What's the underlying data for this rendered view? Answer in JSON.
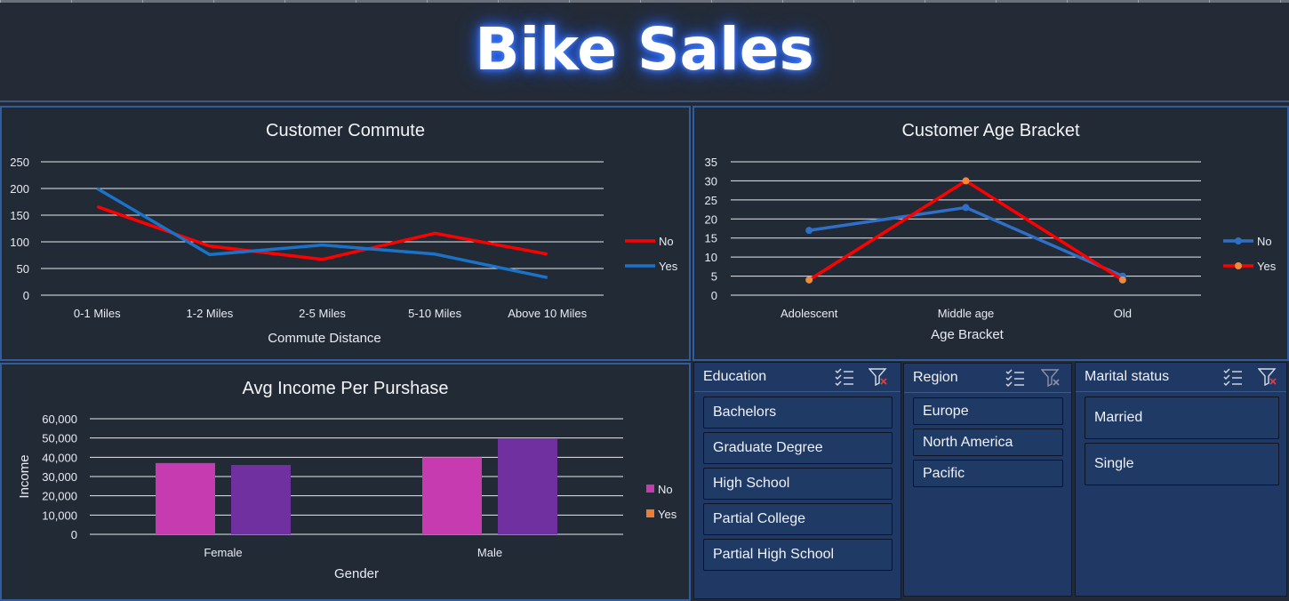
{
  "dashboard": {
    "title": "Bike Sales"
  },
  "colors": {
    "background": "#232a36",
    "panel_border": "#2f5d9d",
    "slicer_bg": "#1f3864",
    "commute_no": "#ff0000",
    "commute_yes": "#1a73c8",
    "age_no": "#2f6fc6",
    "age_yes": "#ff0000",
    "income_no": "#c63cb0",
    "income_yes": "#7030a0"
  },
  "commute_chart": {
    "title": "Customer Commute",
    "chart_data": {
      "type": "line",
      "title": "Customer Commute",
      "xlabel": "Commute Distance",
      "ylabel": "",
      "categories": [
        "0-1 Miles",
        "1-2 Miles",
        "2-5 Miles",
        "5-10 Miles",
        "Above 10 Miles"
      ],
      "ylim": [
        0,
        250
      ],
      "yticks": [
        "0",
        "50",
        "100",
        "150",
        "200",
        "250"
      ],
      "grid": true,
      "legend": "right",
      "series": [
        {
          "name": "No",
          "color": "#ff0000",
          "values": [
            166,
            92,
            67,
            116,
            77
          ]
        },
        {
          "name": "Yes",
          "color": "#1a73c8",
          "values": [
            200,
            76,
            94,
            77,
            33
          ]
        }
      ]
    }
  },
  "age_chart": {
    "title": "Customer Age Bracket",
    "chart_data": {
      "type": "line",
      "title": "Customer Age Bracket",
      "xlabel": "Age Bracket",
      "ylabel": "",
      "categories": [
        "Adolescent",
        "Middle age",
        "Old"
      ],
      "ylim": [
        0,
        35
      ],
      "yticks": [
        "0",
        "5",
        "10",
        "15",
        "20",
        "25",
        "30",
        "35"
      ],
      "grid": true,
      "legend": "right",
      "markers": true,
      "series": [
        {
          "name": "No",
          "color": "#2f6fc6",
          "values": [
            17,
            23,
            5
          ]
        },
        {
          "name": "Yes",
          "color": "#ff0000",
          "marker_color": "#f08a3c",
          "values": [
            4,
            30,
            4
          ]
        }
      ]
    }
  },
  "income_chart": {
    "title": "Avg Income Per Purshase",
    "chart_data": {
      "type": "bar",
      "title": "Avg Income Per Purshase",
      "xlabel": "Gender",
      "ylabel": "Income",
      "categories": [
        "Female",
        "Male"
      ],
      "ylim": [
        0,
        60000
      ],
      "yticks": [
        "0",
        "10,000",
        "20,000",
        "30,000",
        "40,000",
        "50,000",
        "60,000"
      ],
      "grid": true,
      "legend": "right",
      "series": [
        {
          "name": "No",
          "color": "#c63cb0",
          "legend_color": "#c63cb0",
          "values": [
            37000,
            40000
          ]
        },
        {
          "name": "Yes",
          "color": "#7030a0",
          "legend_color": "#ed7d31",
          "values": [
            36000,
            49500
          ]
        }
      ]
    }
  },
  "slicers": {
    "education": {
      "title": "Education",
      "items": [
        "Bachelors",
        "Graduate Degree",
        "High School",
        "Partial College",
        "Partial High School"
      ]
    },
    "region": {
      "title": "Region",
      "items": [
        "Europe",
        "North America",
        "Pacific"
      ]
    },
    "marital": {
      "title": "Marital status",
      "items": [
        "Married",
        "Single"
      ]
    }
  }
}
